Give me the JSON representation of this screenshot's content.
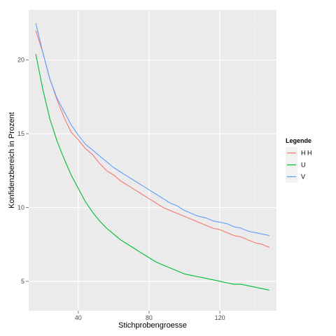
{
  "chart_data": {
    "type": "line",
    "title": "",
    "xlabel": "Stichprobengroesse",
    "ylabel": "Konfidenzbereich in Prozent",
    "xlim": [
      12,
      152
    ],
    "ylim": [
      3,
      23.4
    ],
    "x_ticks": [
      40,
      80,
      120
    ],
    "y_ticks": [
      5,
      10,
      15,
      20
    ],
    "x_tick_labels": [
      "40",
      "80",
      "120"
    ],
    "y_tick_labels": [
      "5",
      "10",
      "15",
      "20"
    ],
    "grid": true,
    "legend": {
      "title": "Legende",
      "placement": "right"
    },
    "x": [
      16,
      20,
      24,
      28,
      32,
      36,
      40,
      44,
      48,
      52,
      56,
      60,
      64,
      68,
      72,
      76,
      80,
      84,
      88,
      92,
      96,
      100,
      104,
      108,
      112,
      116,
      120,
      124,
      128,
      132,
      136,
      140,
      144,
      148
    ],
    "series": [
      {
        "name": "H H",
        "color": "#F8766D",
        "values": [
          22.0,
          20.5,
          18.7,
          17.3,
          16.1,
          15.1,
          14.6,
          14.0,
          13.6,
          13.0,
          12.5,
          12.2,
          11.8,
          11.5,
          11.2,
          10.9,
          10.6,
          10.3,
          10.0,
          9.8,
          9.6,
          9.4,
          9.2,
          9.0,
          8.8,
          8.6,
          8.5,
          8.3,
          8.1,
          8.0,
          7.8,
          7.6,
          7.5,
          7.3
        ]
      },
      {
        "name": "U",
        "color": "#00BA38",
        "values": [
          20.4,
          18.0,
          16.0,
          14.5,
          13.3,
          12.2,
          11.3,
          10.4,
          9.7,
          9.1,
          8.6,
          8.2,
          7.8,
          7.5,
          7.2,
          6.9,
          6.6,
          6.3,
          6.1,
          5.9,
          5.7,
          5.5,
          5.4,
          5.3,
          5.2,
          5.1,
          5.0,
          4.9,
          4.8,
          4.8,
          4.7,
          4.6,
          4.5,
          4.4
        ]
      },
      {
        "name": "V",
        "color": "#619CFF",
        "values": [
          22.5,
          20.5,
          18.7,
          17.4,
          16.5,
          15.6,
          14.9,
          14.3,
          13.9,
          13.5,
          13.1,
          12.7,
          12.4,
          12.1,
          11.8,
          11.5,
          11.2,
          10.9,
          10.6,
          10.3,
          10.1,
          9.8,
          9.6,
          9.4,
          9.3,
          9.1,
          9.0,
          8.9,
          8.7,
          8.6,
          8.4,
          8.3,
          8.2,
          8.1
        ]
      }
    ]
  }
}
